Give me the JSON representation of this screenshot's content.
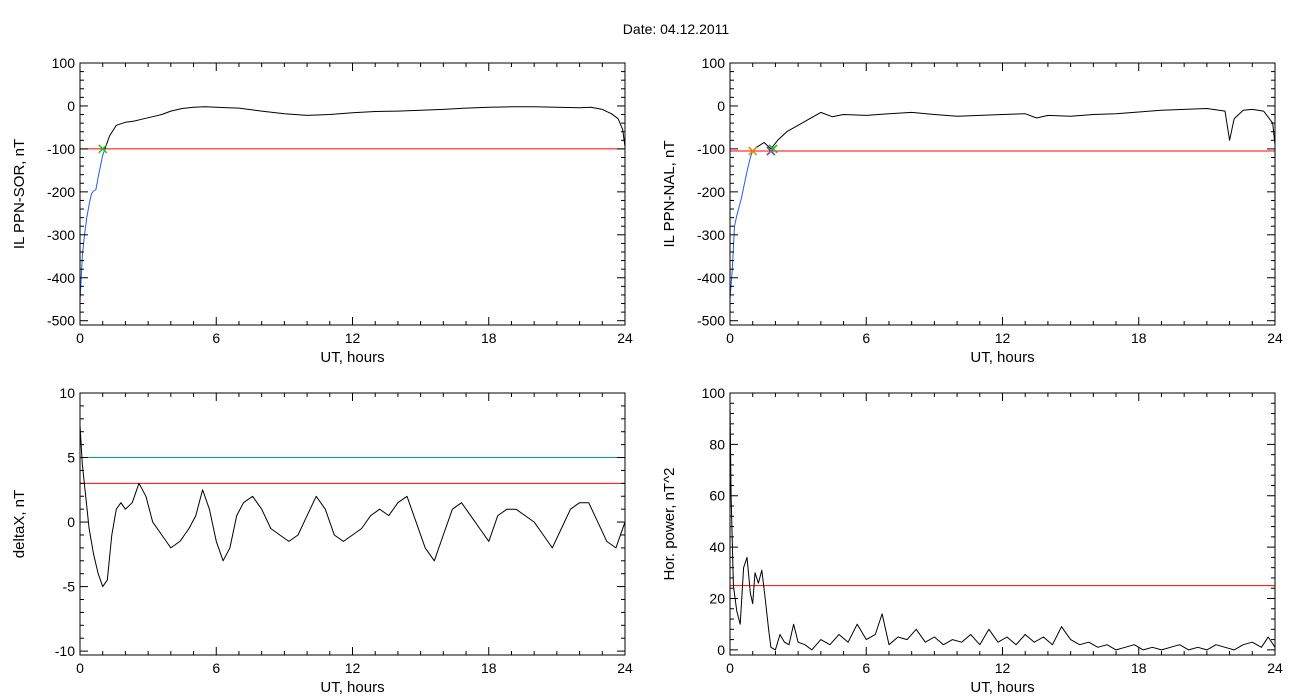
{
  "figure": {
    "title": "Date:  04.12.2011"
  },
  "colors": {
    "trace": "#000000",
    "threshold_red": "#ff0000",
    "threshold_teal": "#00a3a3",
    "fit_blue": "#1f5fe0",
    "marker_green": "#22bb22",
    "marker_purple": "#8a2be2",
    "marker_orange": "#dd8800"
  },
  "chart_data": [
    {
      "type": "line",
      "id": "sor",
      "ylabel": "IL PPN-SOR, nT",
      "xlabel": "UT, hours",
      "xlim": [
        0,
        24
      ],
      "ylim": [
        -510,
        100
      ],
      "xticks": [
        0,
        6,
        12,
        18,
        24
      ],
      "yticks": [
        100,
        0,
        -100,
        -200,
        -300,
        -400,
        -500
      ],
      "thresholds": [
        {
          "value": -100,
          "color": "#ff0000"
        }
      ],
      "series": [
        {
          "color": "#1f5fe0",
          "x": [
            0,
            0.1,
            0.2,
            0.3,
            0.4,
            0.5,
            0.6,
            0.7,
            0.8,
            0.9,
            1.0,
            1.1
          ],
          "y": [
            -455,
            -350,
            -300,
            -260,
            -230,
            -205,
            -198,
            -195,
            -165,
            -140,
            -115,
            -100
          ]
        },
        {
          "color": "#000000",
          "x": [
            1.1,
            1.3,
            1.6,
            2.0,
            2.4,
            2.8,
            3.2,
            3.6,
            4.0,
            4.5,
            5.0,
            5.5,
            6.0,
            6.5,
            7.0,
            8.0,
            9.0,
            10.0,
            11.0,
            12.0,
            13.0,
            14.0,
            15.0,
            16.0,
            17.0,
            18.0,
            19.0,
            20.0,
            21.0,
            22.0,
            22.5,
            23.0,
            23.4,
            23.7,
            23.9,
            24.0
          ],
          "y": [
            -100,
            -70,
            -45,
            -38,
            -35,
            -30,
            -25,
            -20,
            -12,
            -6,
            -3,
            -2,
            -3,
            -4,
            -5,
            -12,
            -18,
            -22,
            -20,
            -16,
            -13,
            -12,
            -10,
            -8,
            -5,
            -3,
            -2,
            -2,
            -3,
            -4,
            -3,
            -8,
            -18,
            -30,
            -55,
            -95
          ]
        }
      ],
      "markers": [
        {
          "x": 1.0,
          "y": -100,
          "color": "#22bb22"
        }
      ]
    },
    {
      "type": "line",
      "id": "nal",
      "ylabel": "IL PPN-NAL, nT",
      "xlabel": "UT, hours",
      "xlim": [
        0,
        24
      ],
      "ylim": [
        -510,
        100
      ],
      "xticks": [
        0,
        6,
        12,
        18,
        24
      ],
      "yticks": [
        100,
        0,
        -100,
        -200,
        -300,
        -400,
        -500
      ],
      "thresholds": [
        {
          "value": -105,
          "color": "#ff0000"
        }
      ],
      "series": [
        {
          "color": "#1f5fe0",
          "x": [
            0,
            0.1,
            0.2,
            0.3,
            0.4,
            0.5,
            0.6,
            0.7,
            0.8,
            0.9,
            1.0
          ],
          "y": [
            -450,
            -380,
            -280,
            -255,
            -235,
            -215,
            -190,
            -165,
            -140,
            -120,
            -105
          ]
        },
        {
          "color": "#000000",
          "x": [
            1.0,
            1.2,
            1.5,
            1.8,
            2.1,
            2.5,
            3.0,
            3.5,
            4.0,
            4.5,
            5.0,
            6.0,
            7.0,
            8.0,
            9.0,
            10.0,
            11.0,
            12.0,
            13.0,
            13.5,
            14.0,
            15.0,
            16.0,
            17.0,
            18.0,
            19.0,
            20.0,
            21.0,
            21.8,
            22.0,
            22.2,
            22.6,
            23.0,
            23.5,
            23.9,
            24.0
          ],
          "y": [
            -105,
            -95,
            -85,
            -100,
            -80,
            -60,
            -45,
            -30,
            -15,
            -25,
            -20,
            -22,
            -18,
            -15,
            -20,
            -24,
            -22,
            -20,
            -18,
            -28,
            -22,
            -24,
            -20,
            -18,
            -14,
            -10,
            -8,
            -6,
            -12,
            -80,
            -30,
            -10,
            -8,
            -12,
            -40,
            -90
          ]
        }
      ],
      "markers": [
        {
          "x": 1.0,
          "y": -105,
          "color": "#dd8800"
        },
        {
          "x": 1.8,
          "y": -105,
          "color": "#8a2be2"
        },
        {
          "x": 1.9,
          "y": -100,
          "color": "#22bb22"
        }
      ]
    },
    {
      "type": "line",
      "id": "deltax",
      "ylabel": "deltaX, nT",
      "xlabel": "UT, hours",
      "xlim": [
        0,
        24
      ],
      "ylim": [
        -10.3,
        10
      ],
      "xticks": [
        0,
        6,
        12,
        18,
        24
      ],
      "yticks": [
        10,
        5,
        0,
        -5,
        -10
      ],
      "ytick_labels": [
        "10",
        "5",
        "0",
        "-5",
        "-10"
      ],
      "thresholds": [
        {
          "value": 5,
          "color": "#00a3a3"
        },
        {
          "value": 3,
          "color": "#ff0000"
        }
      ],
      "series": [
        {
          "color": "#000000",
          "x": [
            0.0,
            0.1,
            0.25,
            0.4,
            0.6,
            0.8,
            1.0,
            1.2,
            1.4,
            1.6,
            1.8,
            2.0,
            2.3,
            2.6,
            2.9,
            3.2,
            3.6,
            4.0,
            4.4,
            4.8,
            5.1,
            5.4,
            5.7,
            6.0,
            6.3,
            6.6,
            6.9,
            7.2,
            7.6,
            8.0,
            8.4,
            8.8,
            9.2,
            9.6,
            10.0,
            10.4,
            10.8,
            11.2,
            11.6,
            12.0,
            12.4,
            12.8,
            13.2,
            13.6,
            14.0,
            14.4,
            14.8,
            15.2,
            15.6,
            16.0,
            16.4,
            16.8,
            17.2,
            17.6,
            18.0,
            18.4,
            18.8,
            19.2,
            19.6,
            20.0,
            20.4,
            20.8,
            21.2,
            21.6,
            22.0,
            22.4,
            22.8,
            23.2,
            23.6,
            24.0
          ],
          "y": [
            7.5,
            4.5,
            2.0,
            -0.5,
            -2.5,
            -4.0,
            -5.0,
            -4.5,
            -1.0,
            1.0,
            1.5,
            1.0,
            1.5,
            3.0,
            2.0,
            0.0,
            -1.0,
            -2.0,
            -1.5,
            -0.5,
            0.5,
            2.5,
            1.0,
            -1.5,
            -3.0,
            -2.0,
            0.5,
            1.5,
            2.0,
            1.0,
            -0.5,
            -1.0,
            -1.5,
            -1.0,
            0.5,
            2.0,
            1.0,
            -1.0,
            -1.5,
            -1.0,
            -0.5,
            0.5,
            1.0,
            0.5,
            1.5,
            2.0,
            0.0,
            -2.0,
            -3.0,
            -1.0,
            1.0,
            1.5,
            0.5,
            -0.5,
            -1.5,
            0.5,
            1.0,
            1.0,
            0.5,
            0.0,
            -1.0,
            -2.0,
            -0.5,
            1.0,
            1.5,
            1.5,
            0.0,
            -1.5,
            -2.0,
            0.0
          ]
        }
      ],
      "markers": []
    },
    {
      "type": "line",
      "id": "power",
      "ylabel": "Hor. power, nT^2",
      "xlabel": "UT, hours",
      "xlim": [
        0,
        24
      ],
      "ylim": [
        -2,
        100
      ],
      "xticks": [
        0,
        6,
        12,
        18,
        24
      ],
      "yticks": [
        100,
        80,
        60,
        40,
        20,
        0
      ],
      "thresholds": [
        {
          "value": 25,
          "color": "#ff0000"
        }
      ],
      "series": [
        {
          "color": "#000000",
          "x": [
            0.0,
            0.05,
            0.15,
            0.3,
            0.45,
            0.6,
            0.75,
            0.9,
            1.0,
            1.1,
            1.25,
            1.4,
            1.55,
            1.7,
            1.8,
            2.0,
            2.2,
            2.4,
            2.6,
            2.8,
            3.0,
            3.3,
            3.6,
            4.0,
            4.4,
            4.8,
            5.2,
            5.6,
            6.0,
            6.4,
            6.7,
            7.0,
            7.4,
            7.8,
            8.2,
            8.6,
            9.0,
            9.4,
            9.8,
            10.2,
            10.6,
            11.0,
            11.4,
            11.8,
            12.2,
            12.6,
            13.0,
            13.4,
            13.8,
            14.2,
            14.6,
            15.0,
            15.4,
            15.8,
            16.2,
            16.6,
            17.0,
            17.4,
            17.8,
            18.2,
            18.6,
            19.0,
            19.4,
            19.8,
            20.2,
            20.6,
            21.0,
            21.4,
            21.8,
            22.2,
            22.6,
            23.0,
            23.4,
            23.7,
            24.0
          ],
          "y": [
            96,
            60,
            25,
            15,
            10,
            32,
            36,
            22,
            18,
            30,
            26,
            31,
            20,
            8,
            1,
            0,
            6,
            3,
            2,
            10,
            3,
            2,
            0,
            4,
            2,
            6,
            3,
            10,
            4,
            6,
            14,
            2,
            5,
            4,
            8,
            3,
            5,
            2,
            4,
            3,
            6,
            2,
            8,
            3,
            5,
            2,
            6,
            3,
            5,
            2,
            9,
            4,
            2,
            3,
            1,
            2,
            0,
            1,
            2,
            0,
            1,
            0,
            1,
            2,
            0,
            1,
            0,
            2,
            1,
            0,
            2,
            3,
            1,
            5,
            1
          ]
        }
      ],
      "markers": []
    }
  ]
}
